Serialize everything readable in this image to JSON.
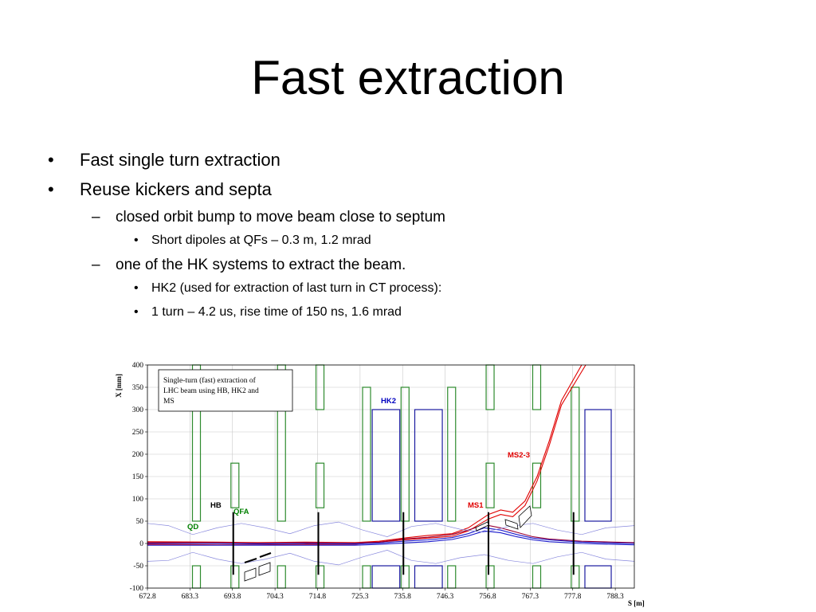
{
  "slide": {
    "title": "Fast extraction",
    "bullets": [
      {
        "marker": "•",
        "text": "Fast single turn extraction"
      },
      {
        "marker": "•",
        "text": "Reuse kickers and septa"
      },
      {
        "marker": "–",
        "text": "closed orbit bump to move beam close to septum"
      },
      {
        "marker": "•",
        "text": "Short dipoles at QFs – 0.3 m, 1.2 mrad"
      },
      {
        "marker": "–",
        "text": "one of the HK systems to extract the beam."
      },
      {
        "marker": "•",
        "text": "HK2 (used for extraction of last turn in CT process):"
      },
      {
        "marker": "•",
        "text": "1 turn – 4.2 us, rise time of 150 ns, 1.6 mrad"
      }
    ]
  },
  "chart_data": {
    "type": "line",
    "xlabel": "S [m]",
    "ylabel": "X [mm]",
    "xlim": [
      672.8,
      793.0
    ],
    "ylim": [
      -100,
      400
    ],
    "xticks": [
      "672.8",
      "683.3",
      "693.8",
      "704.3",
      "714.8",
      "725.3",
      "735.8",
      "746.3",
      "756.8",
      "767.3",
      "777.8",
      "788.3"
    ],
    "yticks": [
      "400",
      "350",
      "300",
      "250",
      "200",
      "150",
      "100",
      "50",
      "0",
      "-50",
      "-100"
    ],
    "grid": true,
    "annotation": [
      "Single-turn (fast) extraction of",
      "LHC beam using HB, HK2 and",
      "MS"
    ],
    "element_labels": [
      {
        "text": "QD",
        "color": "#008000"
      },
      {
        "text": "HB",
        "color": "#000000"
      },
      {
        "text": "QFA",
        "color": "#008000"
      },
      {
        "text": "HK2",
        "color": "#0000c0"
      },
      {
        "text": "MS1",
        "color": "#e00000"
      },
      {
        "text": "MS2-3",
        "color": "#e00000"
      }
    ],
    "colors": {
      "quad": "#2e8b2e",
      "kicker": "#1a1aa0",
      "extracted": "#e00000",
      "circulating": "#1a1acc",
      "dark_red": "#990033",
      "envelope": "#8888dd",
      "marker": "#000000"
    },
    "quadrupoles": [
      {
        "s": 684.9,
        "y0": 50,
        "y1": 400
      },
      {
        "s": 684.9,
        "y0": -100,
        "y1": -50
      },
      {
        "s": 694.4,
        "y0": 80,
        "y1": 180
      },
      {
        "s": 694.4,
        "y0": -100,
        "y1": -50
      },
      {
        "s": 705.9,
        "y0": 50,
        "y1": 400
      },
      {
        "s": 705.9,
        "y0": -100,
        "y1": -50
      },
      {
        "s": 715.4,
        "y0": 300,
        "y1": 400
      },
      {
        "s": 715.4,
        "y0": 80,
        "y1": 180
      },
      {
        "s": 715.4,
        "y0": -100,
        "y1": -50
      },
      {
        "s": 726.9,
        "y0": 50,
        "y1": 350
      },
      {
        "s": 726.9,
        "y0": -100,
        "y1": -50
      },
      {
        "s": 736.4,
        "y0": 50,
        "y1": 350
      },
      {
        "s": 736.4,
        "y0": -100,
        "y1": -50
      },
      {
        "s": 747.9,
        "y0": 50,
        "y1": 350
      },
      {
        "s": 747.9,
        "y0": -100,
        "y1": -50
      },
      {
        "s": 757.4,
        "y0": 300,
        "y1": 400
      },
      {
        "s": 757.4,
        "y0": 80,
        "y1": 180
      },
      {
        "s": 757.4,
        "y0": -100,
        "y1": -50
      },
      {
        "s": 768.9,
        "y0": 300,
        "y1": 400
      },
      {
        "s": 768.9,
        "y0": 80,
        "y1": 180
      },
      {
        "s": 768.9,
        "y0": -100,
        "y1": -50
      },
      {
        "s": 778.4,
        "y0": 50,
        "y1": 350
      },
      {
        "s": 778.4,
        "y0": -100,
        "y1": -50
      }
    ],
    "kickers": [
      {
        "s0": 728.3,
        "s1": 735.1,
        "y0": 50,
        "y1": 300
      },
      {
        "s0": 728.3,
        "s1": 735.1,
        "y0": -100,
        "y1": -50
      },
      {
        "s0": 738.8,
        "s1": 745.6,
        "y0": 50,
        "y1": 300
      },
      {
        "s0": 738.8,
        "s1": 745.6,
        "y0": -100,
        "y1": -50
      },
      {
        "s0": 780.8,
        "s1": 787.3,
        "y0": 50,
        "y1": 300
      },
      {
        "s0": 780.8,
        "s1": 787.3,
        "y0": -100,
        "y1": -50
      }
    ],
    "markers": [
      {
        "s": 694.0,
        "y0": -70,
        "y1": 70
      },
      {
        "s": 715.0,
        "y0": -70,
        "y1": 70
      },
      {
        "s": 736.0,
        "y0": -70,
        "y1": 70
      },
      {
        "s": 757.0,
        "y0": -70,
        "y1": 70
      },
      {
        "s": 778.0,
        "y0": -70,
        "y1": 70
      }
    ],
    "series": [
      {
        "color": "#e00000",
        "x": [
          672.8,
          690,
          700,
          712,
          724,
          730,
          736,
          742,
          748,
          752,
          757,
          760,
          763,
          766,
          769,
          772,
          775,
          780
        ],
        "y": [
          4,
          3,
          2,
          3,
          2,
          5,
          12,
          18,
          22,
          35,
          65,
          75,
          70,
          95,
          150,
          230,
          320,
          400
        ]
      },
      {
        "color": "#e00000",
        "x": [
          672.8,
          690,
          700,
          712,
          724,
          730,
          736,
          742,
          748,
          752,
          757,
          760,
          763,
          766,
          769,
          772,
          775,
          781
        ],
        "y": [
          -2,
          -3,
          -3,
          -2,
          -2,
          3,
          8,
          12,
          16,
          28,
          55,
          65,
          60,
          85,
          140,
          220,
          310,
          400
        ]
      },
      {
        "color": "#990033",
        "x": [
          672.8,
          690,
          700,
          712,
          724,
          730,
          736,
          742,
          748,
          752,
          756,
          760,
          764,
          768,
          772,
          780,
          788,
          793
        ],
        "y": [
          2,
          2,
          1,
          2,
          1,
          3,
          10,
          14,
          20,
          30,
          42,
          35,
          25,
          15,
          10,
          5,
          3,
          2
        ]
      },
      {
        "color": "#1a1acc",
        "x": [
          672.8,
          690,
          700,
          712,
          724,
          730,
          736,
          742,
          748,
          752,
          756,
          760,
          764,
          768,
          772,
          780,
          788,
          793
        ],
        "y": [
          0,
          0,
          -1,
          0,
          -1,
          1,
          5,
          8,
          13,
          22,
          35,
          30,
          20,
          12,
          8,
          3,
          1,
          0
        ]
      },
      {
        "color": "#1a1acc",
        "x": [
          672.8,
          690,
          700,
          712,
          724,
          730,
          736,
          742,
          748,
          752,
          756,
          760,
          764,
          768,
          772,
          780,
          788,
          793
        ],
        "y": [
          -4,
          -4,
          -4,
          -4,
          -4,
          -2,
          1,
          4,
          9,
          17,
          28,
          24,
          15,
          8,
          4,
          0,
          -2,
          -3
        ]
      },
      {
        "color": "#8888dd",
        "x": [
          672.8,
          678,
          684,
          690,
          696,
          702,
          708,
          714,
          720,
          726,
          732,
          738,
          744,
          750,
          756,
          762,
          768,
          774,
          780,
          786,
          793
        ],
        "y": [
          45,
          40,
          20,
          35,
          45,
          35,
          22,
          40,
          48,
          30,
          15,
          38,
          45,
          32,
          25,
          38,
          45,
          30,
          20,
          35,
          40
        ]
      },
      {
        "color": "#8888dd",
        "x": [
          672.8,
          678,
          684,
          690,
          696,
          702,
          708,
          714,
          720,
          726,
          732,
          738,
          744,
          750,
          756,
          762,
          768,
          774,
          780,
          786,
          793
        ],
        "y": [
          -40,
          -38,
          -20,
          -35,
          -45,
          -35,
          -22,
          -40,
          -48,
          -30,
          -15,
          -38,
          -45,
          -32,
          -25,
          -38,
          -45,
          -30,
          -20,
          -35,
          -40
        ]
      }
    ]
  }
}
